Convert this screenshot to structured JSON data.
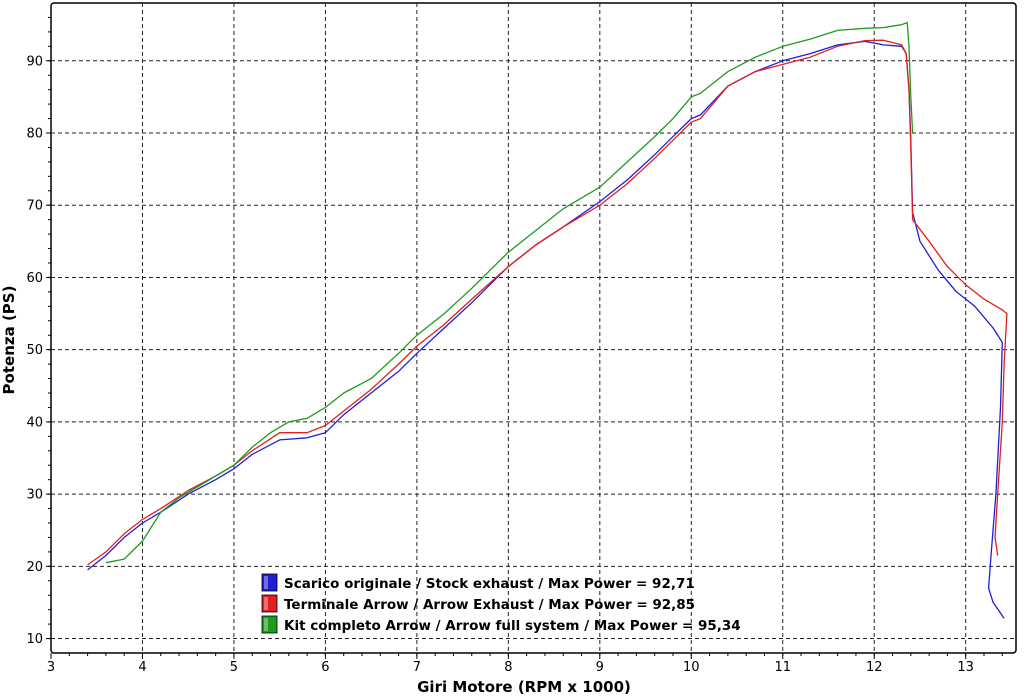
{
  "chart_data": {
    "type": "line",
    "xlabel": "Giri Motore (RPM x 1000)",
    "ylabel": "Potenza (PS)",
    "xlim": [
      3,
      13.55
    ],
    "ylim": [
      8,
      98
    ],
    "xticks": [
      3,
      4,
      5,
      6,
      7,
      8,
      9,
      10,
      11,
      12,
      13
    ],
    "yticks": [
      10,
      20,
      30,
      40,
      50,
      60,
      70,
      80,
      90
    ],
    "grid": true,
    "legend_position": "bottom-left",
    "series": [
      {
        "name": "Scarico originale / Stock exhaust / Max Power = 92,71",
        "color": "#1f1fd6",
        "points": [
          [
            3.4,
            19.5
          ],
          [
            3.6,
            21.5
          ],
          [
            3.8,
            24
          ],
          [
            4.0,
            26
          ],
          [
            4.2,
            27.5
          ],
          [
            4.5,
            30
          ],
          [
            4.8,
            32
          ],
          [
            5.0,
            33.5
          ],
          [
            5.2,
            35.5
          ],
          [
            5.5,
            37.5
          ],
          [
            5.8,
            37.8
          ],
          [
            6.0,
            38.5
          ],
          [
            6.2,
            41
          ],
          [
            6.5,
            44
          ],
          [
            6.8,
            47
          ],
          [
            7.0,
            49.5
          ],
          [
            7.3,
            53
          ],
          [
            7.6,
            56.5
          ],
          [
            8.0,
            61.5
          ],
          [
            8.3,
            64.5
          ],
          [
            8.6,
            67
          ],
          [
            9.0,
            70.5
          ],
          [
            9.3,
            73.5
          ],
          [
            9.6,
            77
          ],
          [
            9.8,
            79.5
          ],
          [
            10.0,
            82
          ],
          [
            10.1,
            82.5
          ],
          [
            10.4,
            86.5
          ],
          [
            10.7,
            88.5
          ],
          [
            11.0,
            90
          ],
          [
            11.3,
            91
          ],
          [
            11.6,
            92.2
          ],
          [
            11.9,
            92.7
          ],
          [
            12.1,
            92.2
          ],
          [
            12.3,
            92
          ],
          [
            12.35,
            91
          ],
          [
            12.38,
            86
          ],
          [
            12.4,
            79
          ],
          [
            12.42,
            69
          ],
          [
            12.5,
            65
          ],
          [
            12.7,
            61
          ],
          [
            12.9,
            58
          ],
          [
            13.1,
            56
          ],
          [
            13.3,
            53
          ],
          [
            13.4,
            51
          ],
          [
            13.38,
            42
          ],
          [
            13.33,
            30
          ],
          [
            13.28,
            22
          ],
          [
            13.25,
            17
          ],
          [
            13.3,
            15
          ],
          [
            13.42,
            12.8
          ]
        ]
      },
      {
        "name": "Terminale Arrow / Arrow Exhaust / Max Power = 92,85",
        "color": "#e02020",
        "points": [
          [
            3.4,
            20.2
          ],
          [
            3.6,
            22
          ],
          [
            3.8,
            24.5
          ],
          [
            4.0,
            26.5
          ],
          [
            4.2,
            28
          ],
          [
            4.5,
            30.5
          ],
          [
            4.8,
            32.5
          ],
          [
            5.0,
            34
          ],
          [
            5.2,
            36
          ],
          [
            5.5,
            38.5
          ],
          [
            5.8,
            38.5
          ],
          [
            6.0,
            39.5
          ],
          [
            6.2,
            41.5
          ],
          [
            6.5,
            44.5
          ],
          [
            6.8,
            48
          ],
          [
            7.0,
            50.5
          ],
          [
            7.3,
            53.5
          ],
          [
            7.6,
            57
          ],
          [
            8.0,
            61.5
          ],
          [
            8.3,
            64.5
          ],
          [
            8.6,
            67
          ],
          [
            9.0,
            70
          ],
          [
            9.3,
            73
          ],
          [
            9.6,
            76.5
          ],
          [
            9.8,
            79
          ],
          [
            10.0,
            81.5
          ],
          [
            10.1,
            82
          ],
          [
            10.4,
            86.5
          ],
          [
            10.7,
            88.5
          ],
          [
            11.0,
            89.5
          ],
          [
            11.3,
            90.5
          ],
          [
            11.6,
            92
          ],
          [
            11.9,
            92.8
          ],
          [
            12.1,
            92.85
          ],
          [
            12.3,
            92.2
          ],
          [
            12.35,
            91
          ],
          [
            12.38,
            86
          ],
          [
            12.4,
            78
          ],
          [
            12.42,
            68
          ],
          [
            12.6,
            65
          ],
          [
            12.8,
            61.5
          ],
          [
            13.0,
            59
          ],
          [
            13.2,
            57
          ],
          [
            13.4,
            55.5
          ],
          [
            13.45,
            55
          ],
          [
            13.42,
            48
          ],
          [
            13.4,
            40
          ],
          [
            13.35,
            30
          ],
          [
            13.32,
            24
          ],
          [
            13.35,
            21.5
          ]
        ]
      },
      {
        "name": "Kit completo Arrow / Arrow full system / Max Power = 95,34",
        "color": "#1f9a1f",
        "points": [
          [
            3.6,
            20.5
          ],
          [
            3.8,
            21
          ],
          [
            4.0,
            23.5
          ],
          [
            4.2,
            27.5
          ],
          [
            4.4,
            29.5
          ],
          [
            4.6,
            31
          ],
          [
            4.8,
            32.5
          ],
          [
            5.0,
            34
          ],
          [
            5.2,
            36.5
          ],
          [
            5.4,
            38.5
          ],
          [
            5.6,
            40
          ],
          [
            5.8,
            40.5
          ],
          [
            6.0,
            42
          ],
          [
            6.2,
            44
          ],
          [
            6.5,
            46
          ],
          [
            6.8,
            49.5
          ],
          [
            7.0,
            52
          ],
          [
            7.3,
            55
          ],
          [
            7.6,
            58.5
          ],
          [
            8.0,
            63.5
          ],
          [
            8.3,
            66.5
          ],
          [
            8.6,
            69.5
          ],
          [
            9.0,
            72.5
          ],
          [
            9.3,
            76
          ],
          [
            9.6,
            79.5
          ],
          [
            9.8,
            82
          ],
          [
            10.0,
            85
          ],
          [
            10.1,
            85.5
          ],
          [
            10.4,
            88.5
          ],
          [
            10.7,
            90.5
          ],
          [
            11.0,
            92
          ],
          [
            11.3,
            93
          ],
          [
            11.6,
            94.2
          ],
          [
            11.9,
            94.5
          ],
          [
            12.1,
            94.6
          ],
          [
            12.3,
            95.0
          ],
          [
            12.36,
            95.3
          ],
          [
            12.38,
            92
          ],
          [
            12.4,
            85
          ],
          [
            12.42,
            80
          ]
        ]
      }
    ]
  }
}
